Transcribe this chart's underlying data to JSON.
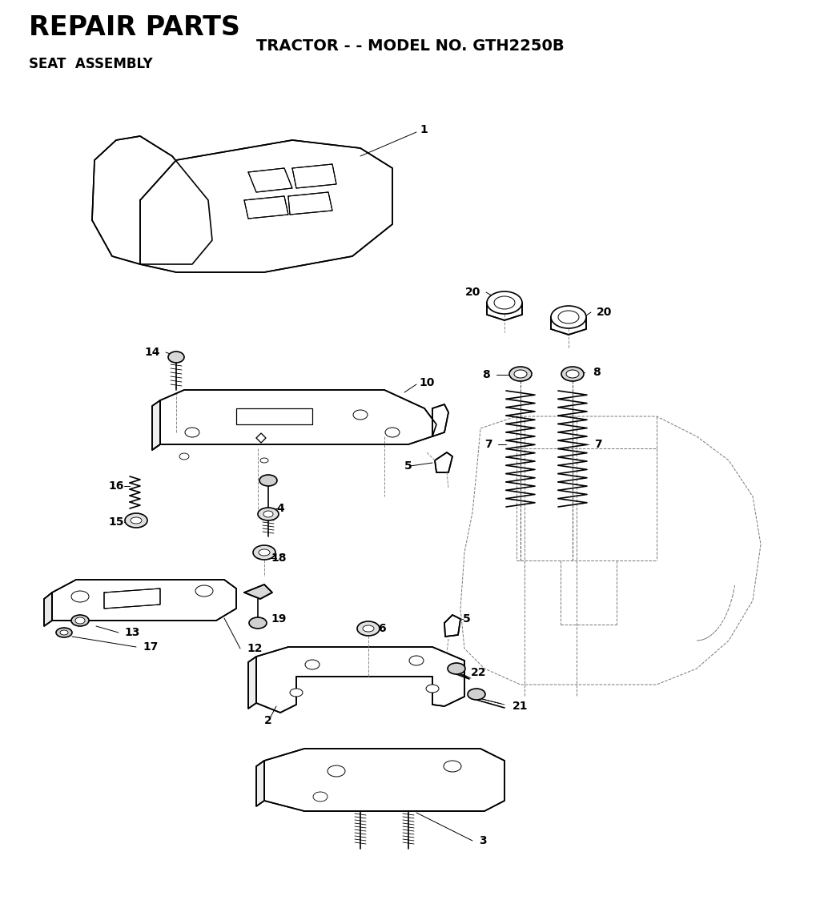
{
  "title": "REPAIR PARTS",
  "subtitle": "TRACTOR - - MODEL NO. GTH2250B",
  "section": "SEAT  ASSEMBLY",
  "bg_color": "#ffffff",
  "text_color": "#000000",
  "line_color": "#000000",
  "lw_main": 1.2,
  "lw_thin": 0.7,
  "lw_dashed": 0.7,
  "fig_w": 10.24,
  "fig_h": 11.44
}
